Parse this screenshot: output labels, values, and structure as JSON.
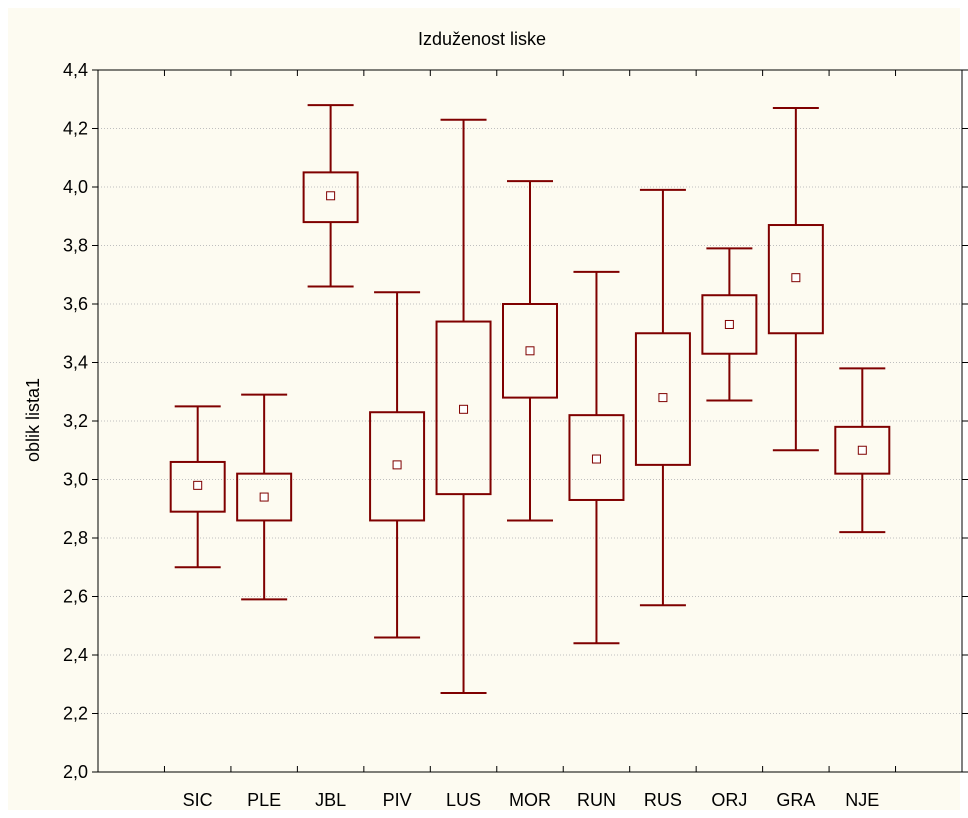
{
  "chart_data": {
    "type": "box",
    "title": "Izduženost liske",
    "xlabel": "",
    "ylabel": "oblik lista1",
    "ylim": [
      2.0,
      4.4
    ],
    "yticks": [
      "2,0",
      "2,2",
      "2,4",
      "2,6",
      "2,8",
      "3,0",
      "3,2",
      "3,4",
      "3,6",
      "3,8",
      "4,0",
      "4,2",
      "4,4"
    ],
    "categories": [
      "SIC",
      "PLE",
      "JBL",
      "PIV",
      "LUS",
      "MOR",
      "RUN",
      "RUS",
      "ORJ",
      "GRA",
      "NJE"
    ],
    "boxes": [
      {
        "category": "SIC",
        "whisker_low": 2.7,
        "box_low": 2.89,
        "center": 2.98,
        "box_high": 3.06,
        "whisker_high": 3.25
      },
      {
        "category": "PLE",
        "whisker_low": 2.59,
        "box_low": 2.86,
        "center": 2.94,
        "box_high": 3.02,
        "whisker_high": 3.29
      },
      {
        "category": "JBL",
        "whisker_low": 3.66,
        "box_low": 3.88,
        "center": 3.97,
        "box_high": 4.05,
        "whisker_high": 4.28
      },
      {
        "category": "PIV",
        "whisker_low": 2.46,
        "box_low": 2.86,
        "center": 3.05,
        "box_high": 3.23,
        "whisker_high": 3.64
      },
      {
        "category": "LUS",
        "whisker_low": 2.27,
        "box_low": 2.95,
        "center": 3.24,
        "box_high": 3.54,
        "whisker_high": 4.23
      },
      {
        "category": "MOR",
        "whisker_low": 2.86,
        "box_low": 3.28,
        "center": 3.44,
        "box_high": 3.6,
        "whisker_high": 4.02
      },
      {
        "category": "RUN",
        "whisker_low": 2.44,
        "box_low": 2.93,
        "center": 3.07,
        "box_high": 3.22,
        "whisker_high": 3.71
      },
      {
        "category": "RUS",
        "whisker_low": 2.57,
        "box_low": 3.05,
        "center": 3.28,
        "box_high": 3.5,
        "whisker_high": 3.99
      },
      {
        "category": "ORJ",
        "whisker_low": 3.27,
        "box_low": 3.43,
        "center": 3.53,
        "box_high": 3.63,
        "whisker_high": 3.79
      },
      {
        "category": "GRA",
        "whisker_low": 3.1,
        "box_low": 3.5,
        "center": 3.69,
        "box_high": 3.87,
        "whisker_high": 4.27
      },
      {
        "category": "NJE",
        "whisker_low": 2.82,
        "box_low": 3.02,
        "center": 3.1,
        "box_high": 3.18,
        "whisker_high": 3.38
      }
    ],
    "grid": true,
    "legend": "none",
    "colors": {
      "box": "#7f0000",
      "grid": "#bfbfbf",
      "background": "#fdfbf1",
      "axis": "#000000"
    }
  }
}
